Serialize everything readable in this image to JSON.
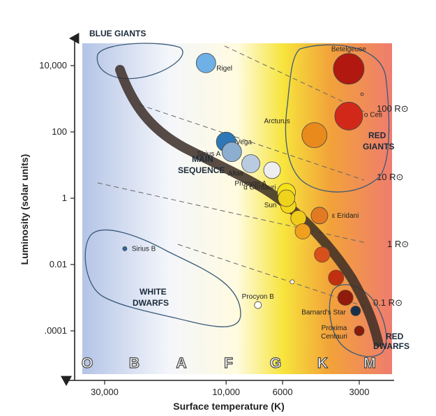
{
  "chart_data": {
    "type": "scatter",
    "xlabel": "Surface temperature (K)",
    "ylabel": "Luminosity (solar units)",
    "x_ticks": [
      "30,000",
      "10,000",
      "6000",
      "3000"
    ],
    "y_ticks": [
      "10,000",
      "100",
      "1",
      "0.01",
      ".0001"
    ],
    "spectral_classes": [
      "O",
      "B",
      "A",
      "F",
      "G",
      "K",
      "M"
    ],
    "region_labels": {
      "blue_giants": "BLUE GIANTS",
      "main_sequence": [
        "MAIN",
        "SEQUENCE"
      ],
      "red_giants": [
        "RED",
        "GIANTS"
      ],
      "white_dwarfs": [
        "WHITE",
        "DWARFS"
      ],
      "red_dwarfs": [
        "RED",
        "DWARFS"
      ]
    },
    "radius_lines": [
      "100 R⊙",
      "10 R⊙",
      "1 R⊙",
      "0.1 R⊙"
    ],
    "stars": [
      {
        "label": "Rigel",
        "temperature_k": 12000,
        "luminosity": 12000,
        "color": "#6fb0e6"
      },
      {
        "label": "Betelgeuse",
        "temperature_k": 3300,
        "luminosity": 8000,
        "color": "#b01810"
      },
      {
        "label": "ο Ceti",
        "temperature_k": 3300,
        "luminosity": 300,
        "color": "#d2281a"
      },
      {
        "label": "Arcturus",
        "temperature_k": 4500,
        "luminosity": 80,
        "color": "#e88a1c"
      },
      {
        "label": "Vega",
        "temperature_k": 10000,
        "luminosity": 50,
        "color": "#2e78b8"
      },
      {
        "label": "Sirius A",
        "temperature_k": 9500,
        "luminosity": 25,
        "color": "#8caed0"
      },
      {
        "label": "Altair",
        "temperature_k": 8000,
        "luminosity": 11,
        "color": "#b9cbe0"
      },
      {
        "label": "Procyon A",
        "temperature_k": 6600,
        "luminosity": 7,
        "color": "#eeeef0"
      },
      {
        "label": "α Centauri",
        "temperature_k": 5800,
        "luminosity": 1.5,
        "color": "#f5e21a"
      },
      {
        "label": "Sun",
        "temperature_k": 5800,
        "luminosity": 1,
        "color": "#efd21a"
      },
      {
        "label": "ε Eridani",
        "temperature_k": 4300,
        "luminosity": 0.3,
        "color": "#e27a22"
      },
      {
        "label": "Sirius B",
        "temperature_k": 25000,
        "luminosity": 0.03,
        "color": "#2a6aa8"
      },
      {
        "label": "Procyon B",
        "temperature_k": 7500,
        "luminosity": 0.0006,
        "color": "#ffffff"
      },
      {
        "label": "Barnard's Star",
        "temperature_k": 3100,
        "luminosity": 0.0004,
        "color": "#1a3048"
      },
      {
        "label": "Proxima Centauri",
        "temperature_k": 3000,
        "luminosity": 0.0001,
        "color": "#8a1a0a"
      }
    ],
    "main_sequence_extra": [
      {
        "temperature_k": 5700,
        "luminosity": 0.6,
        "color": "#f3d81a"
      },
      {
        "temperature_k": 5200,
        "luminosity": 0.25,
        "color": "#f0cc1a"
      },
      {
        "temperature_k": 5000,
        "luminosity": 0.1,
        "color": "#f0a01e"
      },
      {
        "temperature_k": 4200,
        "luminosity": 0.02,
        "color": "#d8501c"
      },
      {
        "temperature_k": 3700,
        "luminosity": 0.004,
        "color": "#c03010"
      },
      {
        "temperature_k": 3400,
        "luminosity": 0.001,
        "color": "#901a0c"
      },
      {
        "temperature_k": 5500,
        "luminosity": 0.003,
        "color": "#ffffff"
      }
    ]
  }
}
